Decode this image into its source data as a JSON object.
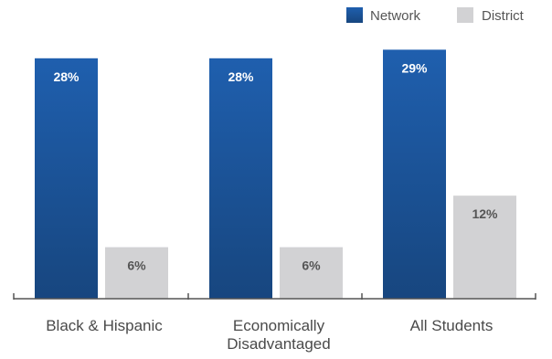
{
  "colors": {
    "network_top": "#1f5fae",
    "network_bottom": "#17467f",
    "district": "#d2d2d4",
    "axis": "#555555",
    "network_label": "#ffffff",
    "district_label": "#555555"
  },
  "chart_data": {
    "type": "bar",
    "title": "",
    "xlabel": "",
    "ylabel": "",
    "ylim": [
      0,
      30
    ],
    "legend_position": "top-right",
    "grid": false,
    "categories": [
      "Black & Hispanic",
      "Economically\nDisadvantaged",
      "All Students"
    ],
    "category_lines": [
      [
        "Black & Hispanic"
      ],
      [
        "Economically",
        "Disadvantaged"
      ],
      [
        "All Students"
      ]
    ],
    "series": [
      {
        "name": "Network",
        "values": [
          28,
          28,
          29
        ],
        "labels": [
          "28%",
          "28%",
          "29%"
        ]
      },
      {
        "name": "District",
        "values": [
          6,
          6,
          12
        ],
        "labels": [
          "6%",
          "6%",
          "12%"
        ]
      }
    ]
  }
}
